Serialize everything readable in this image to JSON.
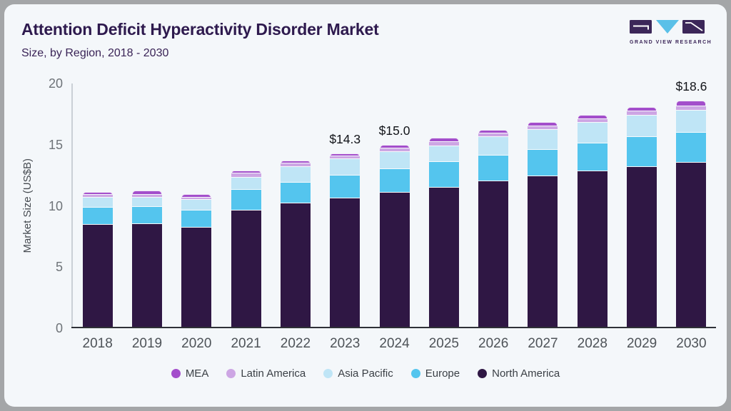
{
  "header": {
    "title": "Attention Deficit Hyperactivity Disorder Market",
    "subtitle": "Size, by Region, 2018 - 2030"
  },
  "logo": {
    "text": "GRAND VIEW RESEARCH",
    "purple": "#3c2759",
    "blue": "#5ac0e8"
  },
  "chart_data": {
    "type": "bar",
    "stacked": true,
    "title": "Attention Deficit Hyperactivity Disorder Market Size, by Region, 2018 - 2030",
    "ylabel": "Market Size (US$B)",
    "xlabel": "",
    "ylim": [
      0,
      20
    ],
    "yticks": [
      0,
      5,
      10,
      15,
      20
    ],
    "grid": false,
    "legend_position": "bottom",
    "categories": [
      "2018",
      "2019",
      "2020",
      "2021",
      "2022",
      "2023",
      "2024",
      "2025",
      "2026",
      "2027",
      "2028",
      "2029",
      "2030"
    ],
    "series": [
      {
        "name": "North America",
        "color": "#2f1744",
        "values": [
          8.45,
          8.5,
          8.2,
          9.6,
          10.2,
          10.6,
          11.1,
          11.5,
          12.0,
          12.4,
          12.8,
          13.2,
          13.55
        ]
      },
      {
        "name": "Europe",
        "color": "#54c5ee",
        "values": [
          1.4,
          1.4,
          1.45,
          1.7,
          1.7,
          1.9,
          1.9,
          2.1,
          2.1,
          2.2,
          2.3,
          2.4,
          2.45
        ]
      },
      {
        "name": "Asia Pacific",
        "color": "#bfe5f6",
        "values": [
          0.8,
          0.75,
          0.85,
          1.0,
          1.3,
          1.3,
          1.4,
          1.3,
          1.5,
          1.6,
          1.7,
          1.8,
          1.8
        ]
      },
      {
        "name": "Latin America",
        "color": "#cda6e4",
        "values": [
          0.25,
          0.25,
          0.2,
          0.35,
          0.25,
          0.25,
          0.3,
          0.35,
          0.3,
          0.3,
          0.3,
          0.3,
          0.35
        ]
      },
      {
        "name": "MEA",
        "color": "#a34ecb",
        "values": [
          0.2,
          0.35,
          0.25,
          0.2,
          0.2,
          0.25,
          0.3,
          0.3,
          0.3,
          0.35,
          0.35,
          0.35,
          0.45
        ]
      }
    ],
    "totals": [
      11.1,
      11.25,
      10.95,
      12.85,
      13.65,
      14.3,
      15.0,
      15.55,
      16.2,
      16.85,
      17.45,
      18.05,
      18.6
    ],
    "annotations": [
      {
        "category": "2023",
        "text": "$14.3"
      },
      {
        "category": "2024",
        "text": "$15.0"
      },
      {
        "category": "2030",
        "text": "$18.6"
      }
    ],
    "legend_order": [
      "MEA",
      "Latin America",
      "Asia Pacific",
      "Europe",
      "North America"
    ]
  }
}
